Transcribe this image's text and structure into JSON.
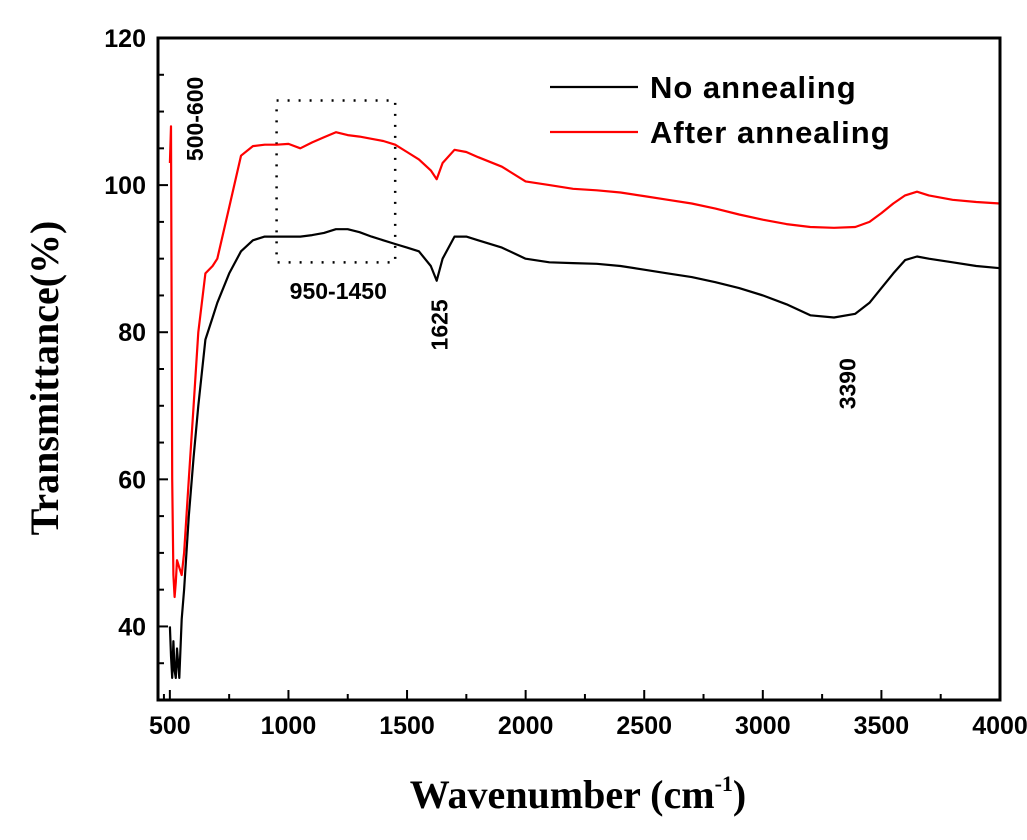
{
  "chart_data": {
    "type": "line",
    "title": "",
    "xlabel": "Wavenumber (cm",
    "xlabel_sup": "-1",
    "xlabel_close": ")",
    "ylabel": "Transmittance(%)",
    "xlim": [
      450,
      4000
    ],
    "ylim": [
      30,
      120
    ],
    "xticks": [
      500,
      1000,
      1500,
      2000,
      2500,
      3000,
      3500,
      4000
    ],
    "xtick_labels": [
      "500",
      "1000",
      "1500",
      "2000",
      "2500",
      "3000",
      "3500",
      "4000"
    ],
    "yticks": [
      40,
      60,
      80,
      100,
      120
    ],
    "ytick_labels": [
      "40",
      "60",
      "80",
      "100",
      "120"
    ],
    "grid": false,
    "legend_position": "top-right",
    "series": [
      {
        "name": "No annealing",
        "color": "#000000",
        "x": [
          500,
          505,
          510,
          515,
          520,
          525,
          530,
          540,
          550,
          560,
          580,
          600,
          620,
          650,
          680,
          700,
          750,
          800,
          850,
          900,
          950,
          1000,
          1050,
          1100,
          1150,
          1200,
          1250,
          1300,
          1350,
          1400,
          1450,
          1500,
          1550,
          1600,
          1625,
          1650,
          1700,
          1750,
          1800,
          1900,
          2000,
          2100,
          2200,
          2300,
          2400,
          2500,
          2600,
          2700,
          2800,
          2900,
          3000,
          3100,
          3200,
          3300,
          3390,
          3450,
          3500,
          3550,
          3600,
          3650,
          3700,
          3800,
          3900,
          4000
        ],
        "y": [
          40,
          36,
          33,
          38,
          34,
          33,
          37,
          33,
          41,
          45,
          55,
          63,
          70,
          79,
          82,
          84,
          88,
          91,
          92.5,
          93,
          93,
          93,
          93,
          93.2,
          93.5,
          94,
          94,
          93.6,
          93,
          92.5,
          92,
          91.5,
          91,
          89,
          87,
          90,
          93,
          93,
          92.5,
          91.5,
          90,
          89.5,
          89.4,
          89.3,
          89,
          88.5,
          88,
          87.5,
          86.8,
          86,
          85,
          83.8,
          82.3,
          82,
          82.5,
          84,
          86,
          88,
          89.8,
          90.3,
          90,
          89.5,
          89,
          88.7
        ]
      },
      {
        "name": "After annealing",
        "color": "#ff0000",
        "x": [
          500,
          505,
          510,
          515,
          520,
          525,
          530,
          540,
          550,
          560,
          580,
          600,
          620,
          650,
          680,
          700,
          750,
          800,
          850,
          900,
          950,
          1000,
          1050,
          1100,
          1150,
          1200,
          1250,
          1300,
          1350,
          1400,
          1450,
          1500,
          1550,
          1600,
          1625,
          1650,
          1700,
          1750,
          1800,
          1900,
          2000,
          2100,
          2200,
          2300,
          2400,
          2500,
          2600,
          2700,
          2800,
          2900,
          3000,
          3100,
          3200,
          3300,
          3390,
          3450,
          3500,
          3550,
          3600,
          3650,
          3700,
          3800,
          3900,
          4000
        ],
        "y": [
          103,
          108,
          60,
          47,
          44,
          46,
          49,
          48,
          47,
          50,
          60,
          70,
          80,
          88,
          89,
          90,
          97,
          104,
          105.3,
          105.5,
          105.5,
          105.6,
          105,
          105.8,
          106.5,
          107.2,
          106.8,
          106.6,
          106.3,
          106,
          105.5,
          104.5,
          103.5,
          102,
          100.8,
          103,
          104.8,
          104.5,
          103.8,
          102.5,
          100.5,
          100,
          99.5,
          99.3,
          99,
          98.5,
          98,
          97.5,
          96.8,
          96,
          95.3,
          94.7,
          94.3,
          94.2,
          94.3,
          95,
          96.2,
          97.5,
          98.6,
          99.1,
          98.6,
          98,
          97.7,
          97.5
        ]
      }
    ],
    "annotations": [
      {
        "text": "500-600",
        "x": 640,
        "y": 109,
        "rotation": -90
      },
      {
        "text": "950-1450",
        "x": 1210,
        "y": 84.5,
        "rotation": 0
      },
      {
        "text": "1625",
        "x": 1670,
        "y": 81,
        "rotation": -90
      },
      {
        "text": "3390",
        "x": 3390,
        "y": 73,
        "rotation": -90
      }
    ],
    "highlight_box": {
      "x": [
        950,
        1450
      ],
      "y": [
        89.5,
        111.5
      ],
      "style": "dotted"
    }
  }
}
